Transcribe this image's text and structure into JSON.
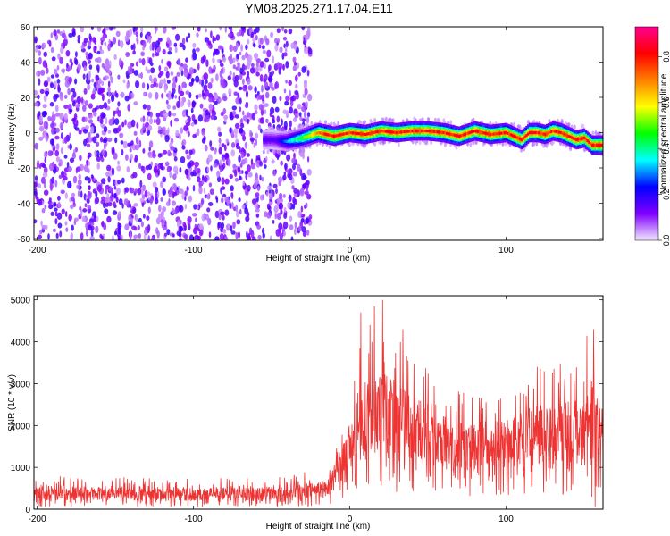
{
  "title": "YM08.2025.271.17.04.E11",
  "chart_data": [
    {
      "type": "heatmap",
      "xlabel": "Height of straight line (km)",
      "ylabel": "Frequency (Hz)",
      "xlim": [
        -202,
        162
      ],
      "ylim": [
        -61,
        60
      ],
      "xticks": [
        -200,
        -100,
        0,
        100
      ],
      "yticks": [
        -60,
        -40,
        -20,
        0,
        20,
        40,
        60
      ],
      "grid": false,
      "noise_region_x": [
        -202,
        -25
      ],
      "signal_region_x": [
        -55,
        162
      ],
      "ridge": [
        {
          "x": -50,
          "y": -4
        },
        {
          "x": -40,
          "y": -5
        },
        {
          "x": -30,
          "y": -3
        },
        {
          "x": -20,
          "y": 0
        },
        {
          "x": -10,
          "y": -2
        },
        {
          "x": 0,
          "y": 0
        },
        {
          "x": 10,
          "y": -1
        },
        {
          "x": 20,
          "y": 1
        },
        {
          "x": 30,
          "y": 0
        },
        {
          "x": 40,
          "y": 1
        },
        {
          "x": 50,
          "y": 1
        },
        {
          "x": 60,
          "y": 0
        },
        {
          "x": 70,
          "y": -2
        },
        {
          "x": 80,
          "y": 1
        },
        {
          "x": 90,
          "y": -1
        },
        {
          "x": 100,
          "y": 0
        },
        {
          "x": 105,
          "y": -2
        },
        {
          "x": 110,
          "y": -4
        },
        {
          "x": 115,
          "y": 0
        },
        {
          "x": 120,
          "y": 0
        },
        {
          "x": 125,
          "y": -1
        },
        {
          "x": 130,
          "y": 1
        },
        {
          "x": 135,
          "y": 0
        },
        {
          "x": 140,
          "y": -2
        },
        {
          "x": 145,
          "y": -4
        },
        {
          "x": 150,
          "y": -3
        },
        {
          "x": 155,
          "y": -7
        },
        {
          "x": 162,
          "y": -7
        }
      ],
      "colorbar": {
        "label": "Normalized spectral amplitude",
        "ticks": [
          0.0,
          0.2,
          0.4,
          0.6,
          0.8
        ],
        "tick_labels": [
          "0.0",
          "0.2",
          "0.4",
          "0.6",
          "0.8"
        ],
        "range": [
          0,
          0.93
        ],
        "colormap": "rainbow",
        "colors": [
          "#f2e8ff",
          "#8000ff",
          "#0000ff",
          "#00ffff",
          "#00ff00",
          "#ffff00",
          "#ff8000",
          "#ff0000",
          "#ff0090"
        ]
      }
    },
    {
      "type": "line",
      "xlabel": "Height of straight line (km)",
      "ylabel": "SNR (10 * v/v)",
      "xlim": [
        -202,
        162
      ],
      "ylim": [
        0,
        5100
      ],
      "xticks": [
        -200,
        -100,
        0,
        100
      ],
      "yticks": [
        0,
        1000,
        2000,
        3000,
        4000,
        5000
      ],
      "line_color": "#ee3333",
      "envelope": [
        {
          "x": -200,
          "low": 50,
          "mean": 350,
          "high": 800
        },
        {
          "x": -100,
          "low": 50,
          "mean": 350,
          "high": 750
        },
        {
          "x": -40,
          "low": 50,
          "mean": 380,
          "high": 800
        },
        {
          "x": -15,
          "low": 100,
          "mean": 500,
          "high": 1000
        },
        {
          "x": -5,
          "low": 200,
          "mean": 1000,
          "high": 1900
        },
        {
          "x": 0,
          "low": 300,
          "mean": 1500,
          "high": 2600
        },
        {
          "x": 10,
          "low": 400,
          "mean": 2000,
          "high": 4700
        },
        {
          "x": 20,
          "low": 400,
          "mean": 2300,
          "high": 5000
        },
        {
          "x": 30,
          "low": 400,
          "mean": 2200,
          "high": 4300
        },
        {
          "x": 40,
          "low": 400,
          "mean": 2000,
          "high": 3700
        },
        {
          "x": 60,
          "low": 300,
          "mean": 1600,
          "high": 3000
        },
        {
          "x": 80,
          "low": 300,
          "mean": 1500,
          "high": 2700
        },
        {
          "x": 100,
          "low": 300,
          "mean": 1550,
          "high": 2800
        },
        {
          "x": 120,
          "low": 300,
          "mean": 1800,
          "high": 3400
        },
        {
          "x": 140,
          "low": 300,
          "mean": 1850,
          "high": 3600
        },
        {
          "x": 155,
          "low": 100,
          "mean": 1900,
          "high": 4300
        },
        {
          "x": 162,
          "low": 400,
          "mean": 1800,
          "high": 3200
        }
      ],
      "peaks": [
        {
          "x": 7,
          "y": 4700
        },
        {
          "x": 21,
          "y": 5000
        },
        {
          "x": 13,
          "y": 4400
        },
        {
          "x": 34,
          "y": 4300
        },
        {
          "x": 120,
          "y": 3400
        },
        {
          "x": 156,
          "y": 4300
        },
        {
          "x": 157,
          "y": 50
        }
      ]
    }
  ]
}
